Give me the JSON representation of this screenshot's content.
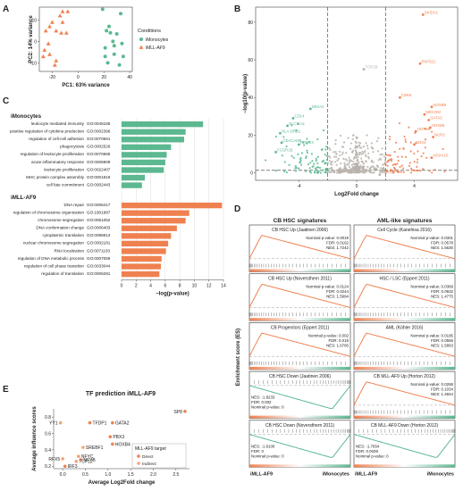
{
  "panels": [
    {
      "id": "panel-a-label",
      "text": "A"
    },
    {
      "id": "panel-b-label",
      "text": "B"
    },
    {
      "id": "panel-c-label",
      "text": "C"
    },
    {
      "id": "panel-d-label",
      "text": "D"
    },
    {
      "id": "panel-e-label",
      "text": "E"
    }
  ],
  "colors": {
    "imono": "#5bb890",
    "iaml": "#ef8150",
    "grey": "#b9b3ab",
    "dash": "#333333"
  },
  "chart_data": [
    {
      "panel": "A",
      "type": "scatter",
      "xlabel": "PC1: 63% variance",
      "ylabel": "PC2: 14% variance",
      "xticks": [
        -20,
        0,
        20,
        40
      ],
      "yticks": [
        -10,
        0,
        10
      ],
      "xlim": [
        -30,
        42
      ],
      "ylim": [
        -14,
        16
      ],
      "legend": {
        "title": "Conditions",
        "entries": [
          "iMonocytes",
          "iMLL-AF9"
        ]
      },
      "series": [
        {
          "name": "iMonocytes",
          "marker": "circle",
          "points": [
            [
              19,
              15
            ],
            [
              24,
              7
            ],
            [
              22,
              5
            ],
            [
              25,
              4
            ],
            [
              30,
              3.5
            ],
            [
              33,
              13
            ],
            [
              27,
              0
            ],
            [
              28,
              -2
            ],
            [
              34,
              -1
            ],
            [
              21,
              -3
            ],
            [
              28,
              -6
            ],
            [
              35,
              -7
            ],
            [
              21,
              -7
            ],
            [
              23,
              -10
            ],
            [
              32,
              -11
            ]
          ]
        },
        {
          "name": "iMLL-AF9",
          "marker": "triangle",
          "points": [
            [
              -12,
              14
            ],
            [
              -8,
              14
            ],
            [
              -14,
              12
            ],
            [
              -20,
              9
            ],
            [
              -12,
              9
            ],
            [
              -22,
              7
            ],
            [
              -25,
              5
            ],
            [
              -17,
              5
            ],
            [
              -13,
              4
            ],
            [
              -9,
              4
            ],
            [
              -23,
              -1
            ],
            [
              -26,
              -4
            ],
            [
              -22,
              -6
            ],
            [
              -27,
              -7
            ],
            [
              -17,
              -9
            ],
            [
              -18,
              -11
            ]
          ]
        }
      ]
    },
    {
      "panel": "B",
      "type": "scatter",
      "xlabel": "Log2Fold change",
      "ylabel": "−log10(p-value)",
      "xticks": [
        -4,
        0,
        4
      ],
      "yticks": [
        0,
        20,
        40,
        60,
        80
      ],
      "xlim": [
        -7,
        7
      ],
      "ylim": [
        -4,
        88
      ],
      "gene_labels": [
        {
          "text": "SKIDA1",
          "x": 4.6,
          "y": 84,
          "color": "iaml"
        },
        {
          "text": "PNF521",
          "x": 4.4,
          "y": 58,
          "color": "iaml"
        },
        {
          "text": "TOP2B",
          "x": 0.5,
          "y": 55,
          "color": "grey"
        },
        {
          "text": "CDK6",
          "x": 3.0,
          "y": 40,
          "color": "iaml"
        },
        {
          "text": "HOXB8",
          "x": 5.2,
          "y": 35,
          "color": "iaml"
        },
        {
          "text": "MECOM",
          "x": 4.7,
          "y": 31,
          "color": "iaml"
        },
        {
          "text": "GATA3",
          "x": 5.0,
          "y": 28,
          "color": "iaml"
        },
        {
          "text": "HOXB5",
          "x": 5.1,
          "y": 24,
          "color": "iaml"
        },
        {
          "text": "HOXB5",
          "x": 4.1,
          "y": 22,
          "color": "iaml"
        },
        {
          "text": "NCR2",
          "x": 5.3,
          "y": 19,
          "color": "iaml"
        },
        {
          "text": "SOX4",
          "x": 4.0,
          "y": 15,
          "color": "iaml"
        },
        {
          "text": "HOXA10",
          "x": 5.2,
          "y": 8,
          "color": "iaml"
        },
        {
          "text": "MEIS1",
          "x": 1.6,
          "y": -1,
          "color": "grey"
        },
        {
          "text": "NR4A1",
          "x": -3.2,
          "y": 34,
          "color": "imono"
        },
        {
          "text": "CD14",
          "x": -4.4,
          "y": 29,
          "color": "imono"
        },
        {
          "text": "SLC11A1",
          "x": -4.8,
          "y": 25,
          "color": "imono"
        },
        {
          "text": "HLA-DRB1",
          "x": -5.3,
          "y": 21,
          "color": "imono"
        },
        {
          "text": "CEACAM8",
          "x": -5.2,
          "y": 16,
          "color": "imono"
        },
        {
          "text": "PRRG4",
          "x": -4.0,
          "y": 15,
          "color": "imono"
        },
        {
          "text": "FCGR1B",
          "x": -5.6,
          "y": 11,
          "color": "imono"
        }
      ]
    },
    {
      "panel": "C",
      "type": "bar",
      "xlabel": "−log(p-value)",
      "xticks": [
        0,
        2,
        4,
        6,
        8,
        10,
        12,
        14
      ],
      "xlim": [
        0,
        14
      ],
      "groups": [
        {
          "name": "iMonocytes",
          "color": "imono",
          "rows": [
            {
              "term": "leukocyte mediated immunity",
              "go": "GO:0045165",
              "value": 11.2
            },
            {
              "term": "positive regulation of cytokine production",
              "go": "GO:0002396",
              "value": 8.8
            },
            {
              "term": "regulation of cell-cell adhesion",
              "go": "GO:0070661",
              "value": 8.6
            },
            {
              "term": "phagocytosis",
              "go": "GO:0002526",
              "value": 6.8
            },
            {
              "term": "regulation of leukocyte proliferation",
              "go": "GO:0070665",
              "value": 6.2
            },
            {
              "term": "acute inflammatory response",
              "go": "GO:0006909",
              "value": 6.0
            },
            {
              "term": "leukocyte proliferation",
              "go": "GO:0022407",
              "value": 5.8
            },
            {
              "term": "MHC protein complex assembly",
              "go": "GO:0001819",
              "value": 3.2
            },
            {
              "term": "cell fate commitment",
              "go": "GO:0002443",
              "value": 2.8
            }
          ]
        },
        {
          "name": "iMLL-AF9",
          "color": "iaml",
          "rows": [
            {
              "term": "DNA repair",
              "go": "GO:0006417",
              "value": 13.8
            },
            {
              "term": "regulation of chromosome organization",
              "go": "GO:1901987",
              "value": 9.3
            },
            {
              "term": "chromosome segregation",
              "go": "GO:0051052",
              "value": 8.8
            },
            {
              "term": "DNA conformation change",
              "go": "GO:0006403",
              "value": 7.6
            },
            {
              "term": "cytoplasmic translation",
              "go": "GO:0098813",
              "value": 6.8
            },
            {
              "term": "nuclear chromosome segregation",
              "go": "GO:0002181",
              "value": 6.4
            },
            {
              "term": "RNA localization",
              "go": "GO:0071103",
              "value": 6.1
            },
            {
              "term": "regulation of DNA metabolic process",
              "go": "GO:0007059",
              "value": 5.5
            },
            {
              "term": "regulation of cell phase transition",
              "go": "GO:0033044",
              "value": 5.4
            },
            {
              "term": "regulation of translation",
              "go": "GO:0006281",
              "value": 5.2
            }
          ]
        }
      ]
    },
    {
      "panel": "D",
      "type": "line",
      "ylabel": "Enrichment score (ES)",
      "columns": [
        {
          "title": "CB HSC signatures",
          "xleft": "iMLL-AF9",
          "xright": "iMonocytes",
          "plots": [
            {
              "title": "CB HSC Up (Jaatinen 2006)",
              "stats": [
                "Nominal p-value: 0.0019",
                "FDR: 0.0162",
                "NES: 1.7242"
              ],
              "direction": "up"
            },
            {
              "title": "CB HSC Up (Noversthern 2011)",
              "stats": [
                "Nominal p-value: 0.0124",
                "FDR: 0.0244",
                "NES: 1.5994"
              ],
              "direction": "up"
            },
            {
              "title": "CB Progenitors (Eppert 2011)",
              "stats": [
                "Nominal p-value: 0.002",
                "FDR: 0.019",
                "NES: 1.6765"
              ],
              "direction": "up"
            },
            {
              "title": "CB HSC Down (Jaatinen 2006)",
              "stats": [
                "NES: -1.8233",
                "FDR: 0.002",
                "Nominal p-value: 0"
              ],
              "direction": "down"
            },
            {
              "title": "CB HSC Down (Noversthern 2011)",
              "stats": [
                "NES: -1.8100",
                "FDR: 0",
                "Nominal p-value: 0"
              ],
              "direction": "down"
            }
          ]
        },
        {
          "title": "AML-like signatures",
          "xleft": "iMLL-AF9",
          "xright": "iMonocytes",
          "plots": [
            {
              "title": "Cell Cycle (Kanehisa 2016)",
              "stats": [
                "Nominal p-value: 0.0301",
                "FDR: 0.0578",
                "NES: 1.5630"
              ],
              "direction": "up"
            },
            {
              "title": "HSC / LSC (Eppert 2011)",
              "stats": [
                "Nominal p-value: 0.0368",
                "FDR: 0.0932",
                "NES: 1.4775"
              ],
              "direction": "up"
            },
            {
              "title": "AML (Köhler 2016)",
              "stats": [
                "Nominal p-value: 0.0195",
                "FDR: 0.0565",
                "NES: 1.5863"
              ],
              "direction": "up"
            },
            {
              "title": "CB MLL-AF9 Up (Horton 2012)",
              "stats": [
                "Nominal p-value: 0.0268",
                "FDR: 0.1034",
                "NES: 1.4844"
              ],
              "direction": "up"
            },
            {
              "title": "CB MLL-AF9 Down (Horton 2012)",
              "stats": [
                "NES: -1.7654",
                "FDR: 0.0039",
                "Nominal p-value: 0"
              ],
              "direction": "down"
            }
          ]
        }
      ]
    },
    {
      "panel": "E",
      "type": "scatter",
      "title": "TF prediction iMLL-AF9",
      "xlabel": "Average Log2Fold change",
      "ylabel": "Average influence scores",
      "xticks": [
        "0.0",
        "0.5",
        "1.0",
        "1.5",
        "2.0",
        "2.5"
      ],
      "xlim": [
        -0.2,
        2.8
      ],
      "yticks": [
        "0.2",
        "0.4",
        "0.6",
        "0.8"
      ],
      "ylim": [
        0.17,
        0.9
      ],
      "legend": {
        "title": "MLL-AF9 target",
        "entries": [
          "Direct",
          "Indirect"
        ]
      },
      "points": [
        {
          "label": "SP8",
          "x": 2.7,
          "y": 0.87,
          "target": "Direct"
        },
        {
          "label": "YY1",
          "x": -0.05,
          "y": 0.73,
          "target": "Indirect"
        },
        {
          "label": "TFDP1",
          "x": 0.6,
          "y": 0.73,
          "target": "Direct"
        },
        {
          "label": "GATA2",
          "x": 1.1,
          "y": 0.73,
          "target": "Direct"
        },
        {
          "label": "PBX3",
          "x": 1.05,
          "y": 0.56,
          "target": "Direct"
        },
        {
          "label": "HOXB4",
          "x": 1.1,
          "y": 0.47,
          "target": "Direct"
        },
        {
          "label": "SREBF1",
          "x": 0.45,
          "y": 0.43,
          "target": "Indirect"
        },
        {
          "label": "NFYC",
          "x": 0.35,
          "y": 0.32,
          "target": "Indirect"
        },
        {
          "label": "RFX5",
          "x": 0.0,
          "y": 0.29,
          "target": "Indirect"
        },
        {
          "label": "NFYB",
          "x": 0.4,
          "y": 0.28,
          "target": "Indirect"
        },
        {
          "label": "TCF12",
          "x": 0.3,
          "y": 0.26,
          "target": "Indirect"
        },
        {
          "label": "IRF3",
          "x": 0.05,
          "y": 0.2,
          "target": "Direct"
        }
      ]
    }
  ]
}
